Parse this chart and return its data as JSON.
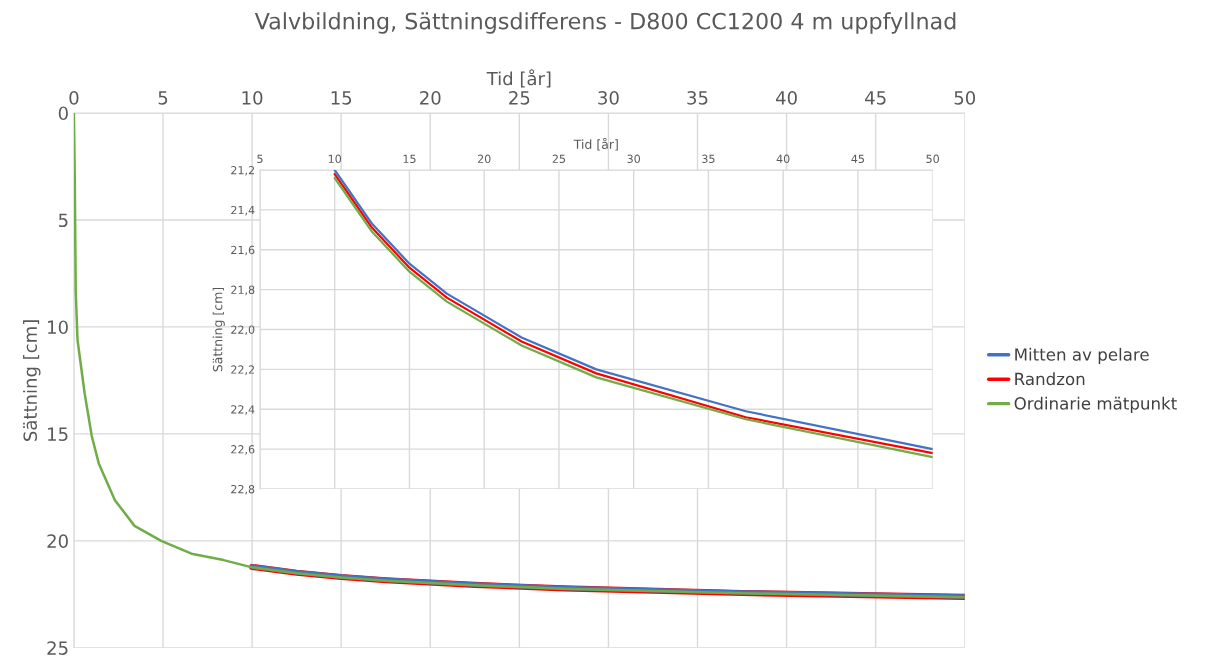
{
  "chart_data": [
    {
      "type": "line",
      "title": "Valvbildning, Sättningsdifferens - D800 CC1200 4 m uppfyllnad",
      "xlabel": "Tid [år]",
      "ylabel": "Sättning [cm]",
      "xlim": [
        0,
        50
      ],
      "xticks": [
        0,
        5,
        10,
        15,
        20,
        25,
        30,
        35,
        40,
        45,
        50
      ],
      "ylim": [
        25,
        0
      ],
      "yticks": [
        0,
        5,
        10,
        15,
        20,
        25
      ],
      "grid": true,
      "legend": "right",
      "line_style": "solid",
      "marker": "none",
      "series": [
        {
          "name": "Mitten av pelare",
          "color": "#4472c4",
          "x": [
            10,
            12.5,
            15,
            17.5,
            22.5,
            27.5,
            37.5,
            50
          ],
          "values": [
            21.2,
            21.47,
            21.67,
            21.82,
            22.04,
            22.2,
            22.41,
            22.6
          ]
        },
        {
          "name": "Randzon",
          "color": "#ff0000",
          "x": [
            10,
            12.5,
            15,
            17.5,
            22.5,
            27.5,
            37.5,
            50
          ],
          "values": [
            21.22,
            21.49,
            21.69,
            21.84,
            22.06,
            22.22,
            22.44,
            22.62
          ]
        },
        {
          "name": "Ordinarie mätpunkt",
          "color": "#70ad47",
          "x": [
            0,
            0.05,
            0.1,
            0.2,
            0.6,
            1.0,
            1.4,
            2.3,
            3.4,
            4.9,
            6.6,
            8.4,
            10,
            12.5,
            15,
            17.5,
            22.5,
            27.5,
            37.5,
            50
          ],
          "values": [
            0,
            3.3,
            8.3,
            10.6,
            13.1,
            15.1,
            16.4,
            18.1,
            19.3,
            20.0,
            20.6,
            20.9,
            21.24,
            21.51,
            21.71,
            21.86,
            22.08,
            22.24,
            22.45,
            22.64
          ]
        }
      ]
    },
    {
      "type": "line",
      "xlabel": "Tid [år]",
      "ylabel": "Sättning [cm]",
      "xlim": [
        5,
        50
      ],
      "xticks": [
        5,
        10,
        15,
        20,
        25,
        30,
        35,
        40,
        45,
        50
      ],
      "ylim": [
        22.8,
        21.2
      ],
      "yticks": [
        {
          "value": 21.2,
          "label": "21,2"
        },
        {
          "value": 21.4,
          "label": "21,4"
        },
        {
          "value": 21.6,
          "label": "21,6"
        },
        {
          "value": 21.8,
          "label": "21,8"
        },
        {
          "value": 22.0,
          "label": "22,0"
        },
        {
          "value": 22.2,
          "label": "22,2"
        },
        {
          "value": 22.4,
          "label": "22,4"
        },
        {
          "value": 22.6,
          "label": "22,6"
        },
        {
          "value": 22.8,
          "label": "22,8"
        }
      ],
      "grid": true,
      "line_style": "solid",
      "marker": "none",
      "series": [
        {
          "color": "#4472c4",
          "x": [
            10,
            12.5,
            15,
            17.5,
            22.5,
            27.5,
            37.5,
            50
          ],
          "values": [
            21.2,
            21.47,
            21.67,
            21.82,
            22.04,
            22.2,
            22.41,
            22.6
          ]
        },
        {
          "color": "#ff0000",
          "x": [
            10,
            12.5,
            15,
            17.5,
            22.5,
            27.5,
            37.5,
            50
          ],
          "values": [
            21.22,
            21.49,
            21.69,
            21.84,
            22.06,
            22.22,
            22.44,
            22.62
          ]
        },
        {
          "color": "#70ad47",
          "x": [
            10,
            12.5,
            15,
            17.5,
            22.5,
            27.5,
            37.5,
            50
          ],
          "values": [
            21.24,
            21.51,
            21.71,
            21.86,
            22.08,
            22.24,
            22.45,
            22.64
          ]
        }
      ]
    }
  ]
}
